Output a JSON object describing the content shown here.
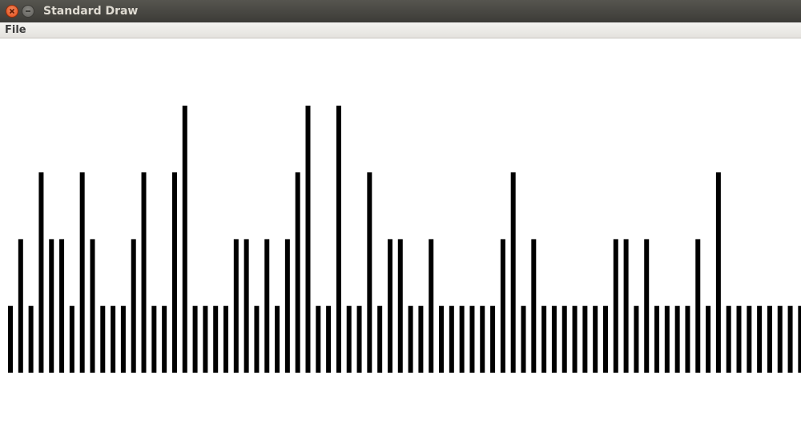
{
  "window": {
    "title": "Standard Draw",
    "buttons": {
      "close": "close-icon",
      "minimize": "minimize-icon"
    },
    "accent_close": "#df4a16"
  },
  "menu": {
    "items": [
      {
        "label": "File"
      }
    ]
  },
  "canvas": {
    "background": "#ffffff",
    "bar_color": "#000000",
    "bars": [
      1,
      2,
      1,
      3,
      2,
      2,
      1,
      3,
      2,
      1,
      1,
      1,
      2,
      3,
      1,
      1,
      3,
      4,
      1,
      1,
      1,
      1,
      2,
      2,
      1,
      2,
      1,
      2,
      3,
      4,
      1,
      1,
      4,
      1,
      1,
      3,
      1,
      2,
      2,
      1,
      1,
      2,
      1,
      1,
      1,
      1,
      1,
      1,
      2,
      3,
      1,
      2,
      1,
      1,
      1,
      1,
      1,
      1,
      1,
      2,
      2,
      1,
      2,
      1,
      1,
      1,
      1,
      2,
      1,
      3,
      1,
      1,
      1,
      1,
      1,
      1,
      1,
      1
    ],
    "max_value": 4
  }
}
